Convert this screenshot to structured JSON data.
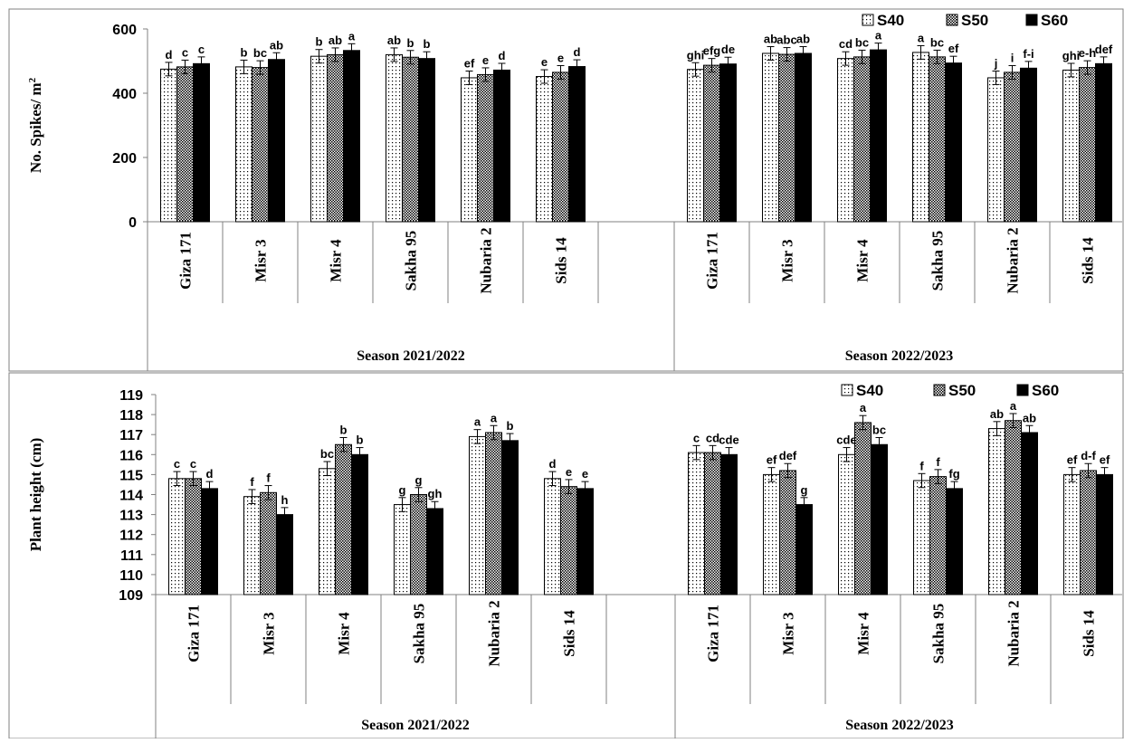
{
  "chart_data": [
    {
      "type": "bar",
      "ylabel": "No. Spikes/ m",
      "ylabel_sup": "2",
      "ylim": [
        0,
        600
      ],
      "yticks": [
        "0",
        "200",
        "400",
        "600"
      ],
      "legend": {
        "placement": "top-right",
        "entries": [
          "S40",
          "S50",
          "S60"
        ]
      },
      "groups": [
        {
          "season": "Season 2021/2022",
          "categories": [
            "Giza 171",
            "Misr 3",
            "Misr 4",
            "Sakha 95",
            "Nubaria 2",
            "Sids 14"
          ],
          "series": [
            {
              "name": "S40",
              "values": [
                475,
                482,
                515,
                520,
                448,
                452
              ]
            },
            {
              "name": "S50",
              "values": [
                482,
                480,
                520,
                512,
                458,
                465
              ]
            },
            {
              "name": "S60",
              "values": [
                492,
                505,
                533,
                508,
                472,
                483
              ]
            }
          ],
          "labels": [
            [
              "d",
              "c",
              "c"
            ],
            [
              "b",
              "bc",
              "ab"
            ],
            [
              "b",
              "ab",
              "a"
            ],
            [
              "ab",
              "b",
              "b"
            ],
            [
              "ef",
              "e",
              "d"
            ],
            [
              "e",
              "e",
              "d"
            ]
          ]
        },
        {
          "season": "Season 2022/2023",
          "categories": [
            "Giza 171",
            "Misr 3",
            "Misr 4",
            "Sakha 95",
            "Nubaria 2",
            "Sids 14"
          ],
          "series": [
            {
              "name": "S40",
              "values": [
                474,
                524,
                508,
                527,
                448,
                472
              ]
            },
            {
              "name": "S50",
              "values": [
                487,
                521,
                513,
                513,
                465,
                480
              ]
            },
            {
              "name": "S60",
              "values": [
                491,
                524,
                535,
                494,
                478,
                492
              ]
            }
          ],
          "labels": [
            [
              "ghi",
              "efg",
              "de"
            ],
            [
              "ab",
              "abc",
              "ab"
            ],
            [
              "cd",
              "bc",
              "a"
            ],
            [
              "a",
              "bc",
              "ef"
            ],
            [
              "j",
              "i",
              "f-i"
            ],
            [
              "ghi",
              "e-h",
              "def"
            ]
          ]
        }
      ]
    },
    {
      "type": "bar",
      "ylabel": "Plant height (cm)",
      "ylim": [
        109,
        119
      ],
      "yticks": [
        "109",
        "110",
        "111",
        "112",
        "113",
        "114",
        "115",
        "116",
        "117",
        "118",
        "119"
      ],
      "legend": {
        "placement": "top-right",
        "entries": [
          "S40",
          "S50",
          "S60"
        ]
      },
      "groups": [
        {
          "season": "Season 2021/2022",
          "categories": [
            "Giza 171",
            "Misr 3",
            "Misr 4",
            "Sakha 95",
            "Nubaria 2",
            "Sids 14"
          ],
          "series": [
            {
              "name": "S40",
              "values": [
                114.8,
                113.9,
                115.3,
                113.5,
                116.9,
                114.8
              ]
            },
            {
              "name": "S50",
              "values": [
                114.8,
                114.1,
                116.5,
                114.0,
                117.1,
                114.4
              ]
            },
            {
              "name": "S60",
              "values": [
                114.3,
                113.0,
                116.0,
                113.3,
                116.7,
                114.3
              ]
            }
          ],
          "labels": [
            [
              "c",
              "c",
              "d"
            ],
            [
              "f",
              "f",
              "h"
            ],
            [
              "bc",
              "b",
              "b"
            ],
            [
              "g",
              "g",
              "gh"
            ],
            [
              "a",
              "a",
              "b"
            ],
            [
              "d",
              "e",
              "e"
            ]
          ]
        },
        {
          "season": "Season 2022/2023",
          "categories": [
            "Giza 171",
            "Misr 3",
            "Misr 4",
            "Sakha 95",
            "Nubaria 2",
            "Sids 14"
          ],
          "series": [
            {
              "name": "S40",
              "values": [
                116.1,
                115.0,
                116.0,
                114.7,
                117.3,
                115.0
              ]
            },
            {
              "name": "S50",
              "values": [
                116.1,
                115.2,
                117.6,
                114.9,
                117.7,
                115.2
              ]
            },
            {
              "name": "S60",
              "values": [
                116.0,
                113.5,
                116.5,
                114.3,
                117.1,
                115.0
              ]
            }
          ],
          "labels": [
            [
              "c",
              "cd",
              "cde"
            ],
            [
              "ef",
              "def",
              "g"
            ],
            [
              "cde",
              "a",
              "bc"
            ],
            [
              "f",
              "f",
              "fg"
            ],
            [
              "ab",
              "a",
              "ab"
            ],
            [
              "ef",
              "d-f",
              "ef"
            ]
          ]
        }
      ]
    }
  ]
}
